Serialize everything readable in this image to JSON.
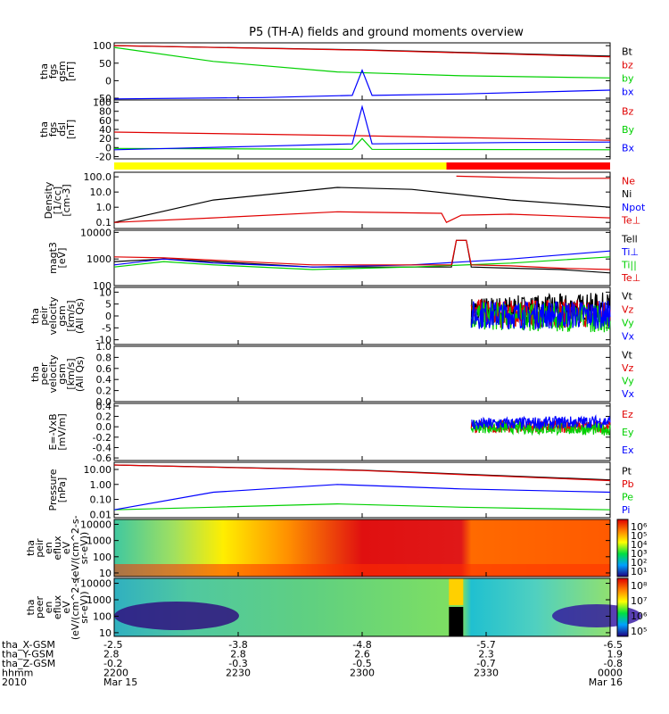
{
  "title": "P5 (TH-A) fields and ground moments overview",
  "colors": {
    "black": "#000000",
    "red": "#e00000",
    "green": "#00d000",
    "blue": "#0000ff",
    "yellow": "#ffff00",
    "bar_red": "#ff0000"
  },
  "chart_data": [
    {
      "type": "line",
      "id": "fgs",
      "ylabel": [
        "tha",
        "fgs",
        "gsm",
        "[nT]"
      ],
      "yticks": [
        "100",
        "50",
        "0",
        "-50"
      ],
      "ylim": [
        -55,
        108
      ],
      "series": [
        {
          "name": "Bt",
          "color": "#000000",
          "x": [
            0,
            0.5,
            1
          ],
          "y": [
            100,
            88,
            70
          ]
        },
        {
          "name": "bz",
          "color": "#e00000",
          "x": [
            0,
            0.5,
            1
          ],
          "y": [
            100,
            87,
            68
          ]
        },
        {
          "name": "by",
          "color": "#00d000",
          "x": [
            0,
            0.2,
            0.45,
            0.7,
            1
          ],
          "y": [
            95,
            55,
            25,
            14,
            8
          ]
        },
        {
          "name": "bx",
          "color": "#0000ff",
          "x": [
            0,
            0.3,
            0.48,
            0.5,
            0.52,
            0.7,
            1
          ],
          "y": [
            -52,
            -48,
            -42,
            30,
            -42,
            -38,
            -27
          ]
        }
      ]
    },
    {
      "type": "line",
      "id": "fgs_dsl",
      "ylabel": [
        "tha",
        "fgs",
        "dsl",
        "[nT]"
      ],
      "yticks": [
        "100",
        "80",
        "60",
        "40",
        "20",
        "0",
        "-20"
      ],
      "ylim": [
        -25,
        105
      ],
      "series": [
        {
          "name": "Bz",
          "color": "#e00000",
          "x": [
            0,
            0.5,
            1
          ],
          "y": [
            34,
            26,
            16
          ]
        },
        {
          "name": "By",
          "color": "#00d000",
          "x": [
            0,
            0.48,
            0.5,
            0.52,
            1
          ],
          "y": [
            -2,
            -4,
            20,
            -4,
            -5
          ]
        },
        {
          "name": "Bx",
          "color": "#0000ff",
          "x": [
            0,
            0.3,
            0.48,
            0.5,
            0.52,
            0.8,
            1
          ],
          "y": [
            -5,
            3,
            8,
            90,
            8,
            11,
            12
          ]
        }
      ]
    },
    {
      "type": "bar",
      "id": "mode",
      "segments": [
        {
          "x0": 0,
          "x1": 0.67,
          "color": "#ffff00"
        },
        {
          "x0": 0.67,
          "x1": 1,
          "color": "#ff0000"
        }
      ]
    },
    {
      "type": "line",
      "id": "density",
      "scale": "log",
      "ylabel": [
        "Density",
        "[1/cc]",
        "[cm-3]"
      ],
      "yticks": [
        "100.0",
        "10.0",
        "1.0",
        "0.1"
      ],
      "ylim": [
        0.04,
        200
      ],
      "series": [
        {
          "name": "Ne",
          "color": "#e00000",
          "x": [
            0.69,
            0.8,
            0.9,
            1
          ],
          "y": [
            110,
            90,
            80,
            80
          ]
        },
        {
          "name": "Ni",
          "color": "#000000",
          "x": [
            0,
            0.2,
            0.45,
            0.6,
            0.8,
            1
          ],
          "y": [
            0.1,
            3,
            20,
            15,
            3,
            1
          ]
        },
        {
          "name": "Npot",
          "color": "#0000ff",
          "x": [],
          "y": []
        },
        {
          "name": "Te⊥",
          "color": "#e00000",
          "x": [
            0,
            0.2,
            0.45,
            0.66,
            0.67,
            0.7,
            0.8,
            1
          ],
          "y": [
            0.1,
            0.2,
            0.5,
            0.4,
            0.1,
            0.3,
            0.35,
            0.2
          ]
        }
      ]
    },
    {
      "type": "line",
      "id": "temps",
      "scale": "log",
      "ylabel": [
        "magt3",
        "[eV]"
      ],
      "yticks": [
        "10000",
        "1000",
        "100"
      ],
      "ylim": [
        100,
        12000
      ],
      "series": [
        {
          "name": "Tell",
          "color": "#000000",
          "x": [
            0,
            0.1,
            0.2,
            0.4,
            0.68,
            0.69,
            0.71,
            0.72,
            0.8,
            0.9,
            1
          ],
          "y": [
            800,
            1000,
            800,
            500,
            500,
            5000,
            5000,
            500,
            450,
            400,
            300
          ]
        },
        {
          "name": "Ti⊥",
          "color": "#0000ff",
          "x": [
            0,
            0.1,
            0.2,
            0.4,
            0.6,
            0.8,
            1
          ],
          "y": [
            600,
            1000,
            700,
            500,
            600,
            1000,
            2000
          ]
        },
        {
          "name": "Ti||",
          "color": "#00d000",
          "x": [
            0,
            0.1,
            0.2,
            0.4,
            0.6,
            0.8,
            1
          ],
          "y": [
            500,
            800,
            600,
            400,
            500,
            700,
            1200
          ]
        },
        {
          "name": "Te⊥",
          "color": "#e00000",
          "x": [
            0,
            0.1,
            0.2,
            0.4,
            0.68,
            0.69,
            0.71,
            0.72,
            0.8,
            0.9,
            1
          ],
          "y": [
            1200,
            1100,
            900,
            600,
            600,
            5000,
            5000,
            600,
            550,
            450,
            400
          ]
        }
      ]
    },
    {
      "type": "line",
      "id": "peir_vel",
      "ylabel": [
        "tha",
        "peir",
        "velocity",
        "gsm",
        "[km/s]",
        "(All Qs)"
      ],
      "yticks": [
        "10",
        "5",
        "0",
        "-5",
        "-10"
      ],
      "ylim": [
        -12,
        12
      ],
      "series": [
        {
          "name": "Vt",
          "color": "#000000",
          "x": [
            0.72,
            1
          ],
          "y": [
            2,
            4
          ]
        },
        {
          "name": "Vz",
          "color": "#e00000",
          "x": [
            0.72,
            1
          ],
          "y": [
            1,
            1
          ]
        },
        {
          "name": "Vy",
          "color": "#00d000",
          "x": [
            0.72,
            1
          ],
          "y": [
            0,
            -1
          ]
        },
        {
          "name": "Vx",
          "color": "#0000ff",
          "x": [
            0.72,
            1
          ],
          "y": [
            0.5,
            0.5
          ]
        }
      ]
    },
    {
      "type": "line",
      "id": "peer_vel",
      "ylabel": [
        "tha",
        "peer",
        "velocity",
        "gsm",
        "[km/s]",
        "(All Qs)"
      ],
      "yticks": [
        "1.0",
        "0.8",
        "0.6",
        "0.4",
        "0.2",
        "0.0"
      ],
      "ylim": [
        0,
        1
      ],
      "series": [
        {
          "name": "Vt",
          "color": "#000000",
          "x": [],
          "y": []
        },
        {
          "name": "Vz",
          "color": "#e00000",
          "x": [],
          "y": []
        },
        {
          "name": "Vy",
          "color": "#00d000",
          "x": [],
          "y": []
        },
        {
          "name": "Vx",
          "color": "#0000ff",
          "x": [],
          "y": []
        }
      ]
    },
    {
      "type": "line",
      "id": "efield",
      "ylabel": [
        "E=-VxB",
        "[mV/m]"
      ],
      "yticks": [
        "0.4",
        "0.2",
        "0.0",
        "-0.2",
        "-0.4",
        "-0.6"
      ],
      "ylim": [
        -0.65,
        0.45
      ],
      "series": [
        {
          "name": "Ez",
          "color": "#e00000",
          "x": [
            0.72,
            1
          ],
          "y": [
            0,
            0
          ]
        },
        {
          "name": "Ey",
          "color": "#00d000",
          "x": [
            0.72,
            1
          ],
          "y": [
            0,
            -0.05
          ]
        },
        {
          "name": "Ex",
          "color": "#0000ff",
          "x": [
            0.72,
            1
          ],
          "y": [
            0.05,
            0.1
          ]
        }
      ]
    },
    {
      "type": "line",
      "id": "pressure",
      "scale": "log",
      "ylabel": [
        "Pressure",
        "[nPa]"
      ],
      "yticks": [
        "10.00",
        "1.00",
        "0.10",
        "0.01"
      ],
      "ylim": [
        0.006,
        30
      ],
      "series": [
        {
          "name": "Pt",
          "color": "#000000",
          "x": [
            0,
            0.5,
            1
          ],
          "y": [
            20,
            9,
            2
          ]
        },
        {
          "name": "Pb",
          "color": "#e00000",
          "x": [
            0,
            0.5,
            1
          ],
          "y": [
            20,
            8.5,
            1.8
          ]
        },
        {
          "name": "Pe",
          "color": "#00d000",
          "x": [
            0,
            0.2,
            0.45,
            0.7,
            1
          ],
          "y": [
            0.02,
            0.03,
            0.05,
            0.03,
            0.02
          ]
        },
        {
          "name": "Pi",
          "color": "#0000ff",
          "x": [
            0,
            0.2,
            0.45,
            0.7,
            1
          ],
          "y": [
            0.02,
            0.3,
            1,
            0.5,
            0.3
          ]
        }
      ]
    },
    {
      "type": "heatmap",
      "id": "peir_en",
      "ylabel": [
        "tha",
        "peir",
        "en",
        "eflux",
        "eV",
        "(eV/(cm^2-s-",
        "sr-eV))"
      ],
      "yticks": [
        "10000",
        "1000",
        "100",
        "10"
      ],
      "ylim": [
        6,
        20000
      ],
      "colorbar": {
        "ticks": [
          "10⁶",
          "10⁵",
          "10⁴",
          "10³",
          "10²",
          "10¹"
        ]
      }
    },
    {
      "type": "heatmap",
      "id": "peer_en",
      "ylabel": [
        "tha",
        "peer",
        "en",
        "eflux",
        "eV",
        "(eV/(cm^2-s-",
        "sr-eV))"
      ],
      "yticks": [
        "10000",
        "1000",
        "100",
        "10"
      ],
      "ylim": [
        6,
        20000
      ],
      "colorbar": {
        "ticks": [
          "10⁸",
          "10⁷",
          "10⁶",
          "10⁵"
        ]
      }
    }
  ],
  "ephemeris": {
    "labels": [
      "tha_X-GSM",
      "tha_Y-GSM",
      "tha_Z-GSM",
      "hhmm",
      "2010"
    ],
    "columns": [
      [
        "-2.5",
        "2.8",
        "-0.2",
        "2200",
        "Mar 15"
      ],
      [
        "-3.8",
        "2.8",
        "-0.3",
        "2230",
        ""
      ],
      [
        "-4.8",
        "2.6",
        "-0.5",
        "2300",
        ""
      ],
      [
        "-5.7",
        "2.3",
        "-0.7",
        "2330",
        ""
      ],
      [
        "-6.5",
        "1.9",
        "-0.8",
        "0000",
        "Mar 16"
      ]
    ]
  }
}
